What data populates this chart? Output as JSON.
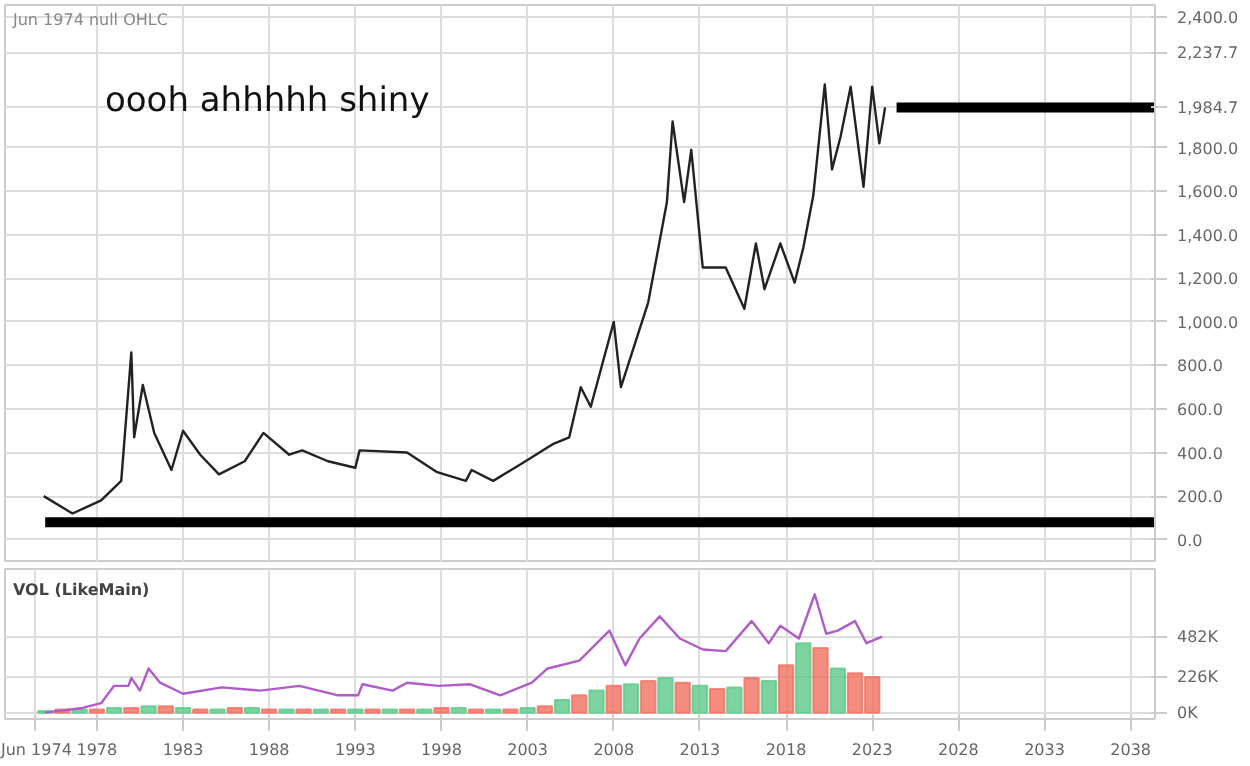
{
  "chart_data": [
    {
      "type": "line",
      "annotations": [
        "Jun 1974 null OHLC",
        "oooh ahhhhh shiny"
      ],
      "xlim": [
        "1972-09",
        "2039-06"
      ],
      "ylim": [
        -98,
        2455
      ],
      "xticks": [
        "1978",
        "1983",
        "1988",
        "1993",
        "1998",
        "2003",
        "2008",
        "2013",
        "2018",
        "2023",
        "2028",
        "2033",
        "2038"
      ],
      "yticks": [
        {
          "value": 0,
          "label": "0.0"
        },
        {
          "value": 200,
          "label": "200.0"
        },
        {
          "value": 400,
          "label": "400.0"
        },
        {
          "value": 600,
          "label": "600.0"
        },
        {
          "value": 800,
          "label": "800.0"
        },
        {
          "value": 1000,
          "label": "1,000.0"
        },
        {
          "value": 1200,
          "label": "1,200.0"
        },
        {
          "value": 1400,
          "label": "1,400.0"
        },
        {
          "value": 1600,
          "label": "1,600.0"
        },
        {
          "value": 1800,
          "label": "1,800.0"
        },
        {
          "value": 1984.7,
          "label": "1,984.7"
        },
        {
          "value": 2237.7,
          "label": "2,237.7"
        },
        {
          "value": 2400,
          "label": "2,400.0"
        }
      ],
      "grid": true,
      "tick_labels": "y",
      "series": [
        {
          "color": "#222222",
          "x": [
            "1974-12",
            "1976-08",
            "1978-04",
            "1979-06",
            "1980-01",
            "1980-03",
            "1980-09",
            "1981-05",
            "1982-05",
            "1983-01",
            "1984-01",
            "1985-02",
            "1986-08",
            "1987-09",
            "1989-03",
            "1989-12",
            "1991-06",
            "1993-01",
            "1993-04",
            "1996-01",
            "1997-10",
            "1999-06",
            "1999-10",
            "2001-01",
            "2002-09",
            "2004-07",
            "2005-06",
            "2006-02",
            "2006-09",
            "2008-01",
            "2008-06",
            "2010-01",
            "2011-02",
            "2011-06",
            "2012-02",
            "2012-07",
            "2013-03",
            "2014-07",
            "2015-08",
            "2016-04",
            "2016-10",
            "2017-09",
            "2018-07",
            "2019-01",
            "2019-08",
            "2020-04",
            "2020-09",
            "2021-03",
            "2021-10",
            "2022-07",
            "2023-01",
            "2023-06",
            "2023-10"
          ],
          "values": [
            200,
            120,
            180,
            270,
            860,
            470,
            710,
            490,
            320,
            500,
            390,
            300,
            360,
            490,
            390,
            410,
            360,
            330,
            410,
            400,
            310,
            270,
            320,
            270,
            350,
            440,
            470,
            700,
            610,
            1000,
            700,
            1090,
            1550,
            1920,
            1550,
            1790,
            1250,
            1250,
            1060,
            1360,
            1150,
            1360,
            1180,
            1340,
            1580,
            2090,
            1700,
            1850,
            2080,
            1620,
            2080,
            1820,
            1984.7
          ]
        },
        {
          "color": "#000000",
          "x": [
            "2024-06",
            "2039-06"
          ],
          "values": [
            1984.7,
            1984.7
          ]
        },
        {
          "color": "#000000",
          "x": [
            "1975-01",
            "2039-06"
          ],
          "values": [
            80,
            80
          ]
        }
      ]
    },
    {
      "type": "bar",
      "title": "VOL (LikeMain)",
      "xlim": [
        "1972-09",
        "2039-06"
      ],
      "ylim": [
        -40,
        910
      ],
      "xticks": [
        {
          "value": "1974-06",
          "label": "Jun 1974"
        },
        "1978",
        "1983",
        "1988",
        "1993",
        "1998",
        "2003",
        "2008",
        "2013",
        "2018",
        "2023",
        "2028",
        "2033",
        "2038"
      ],
      "yticks": [
        {
          "value": 0,
          "label": "0K"
        },
        {
          "value": 226,
          "label": "226K"
        },
        {
          "value": 482,
          "label": "482K"
        }
      ],
      "grid": true,
      "series": [
        {
          "type": "bar",
          "x": [
            "1975",
            "1976",
            "1977",
            "1978",
            "1979",
            "1980",
            "1981",
            "1982",
            "1983",
            "1984",
            "1985",
            "1986",
            "1987",
            "1988",
            "1989",
            "1990",
            "1991",
            "1992",
            "1993",
            "1994",
            "1995",
            "1996",
            "1997",
            "1998",
            "1999",
            "2000",
            "2001",
            "2002",
            "2003",
            "2004",
            "2005",
            "2006",
            "2007",
            "2008",
            "2009",
            "2010",
            "2011",
            "2012",
            "2013",
            "2014",
            "2015",
            "2016",
            "2017",
            "2018",
            "2019",
            "2020",
            "2021",
            "2022",
            "2023"
          ],
          "values": [
            10,
            20,
            20,
            20,
            30,
            30,
            40,
            40,
            30,
            20,
            20,
            30,
            30,
            20,
            20,
            20,
            20,
            20,
            20,
            20,
            20,
            20,
            20,
            30,
            30,
            20,
            20,
            20,
            30,
            40,
            80,
            110,
            140,
            170,
            180,
            200,
            220,
            190,
            170,
            150,
            160,
            220,
            200,
            300,
            440,
            410,
            280,
            250,
            226
          ],
          "colors": [
            "#5cc98a",
            "#f07060",
            "#5cc98a",
            "#f07060",
            "#5cc98a",
            "#f07060",
            "#5cc98a",
            "#f07060",
            "#5cc98a",
            "#f07060",
            "#5cc98a",
            "#f07060",
            "#5cc98a",
            "#f07060",
            "#5cc98a",
            "#f07060",
            "#5cc98a",
            "#f07060",
            "#5cc98a",
            "#f07060",
            "#5cc98a",
            "#f07060",
            "#5cc98a",
            "#f07060",
            "#5cc98a",
            "#f07060",
            "#5cc98a",
            "#f07060",
            "#5cc98a",
            "#f07060",
            "#5cc98a",
            "#f07060",
            "#5cc98a",
            "#f07060",
            "#5cc98a",
            "#f07060",
            "#5cc98a",
            "#f07060",
            "#5cc98a",
            "#f07060",
            "#5cc98a",
            "#f07060",
            "#5cc98a",
            "#f07060",
            "#5cc98a",
            "#f07060",
            "#5cc98a",
            "#f07060",
            "#f07060"
          ]
        },
        {
          "type": "line",
          "color": "#b05cc8",
          "x": [
            "1975-01",
            "1977-03",
            "1978-04",
            "1979-01",
            "1979-11",
            "1980-01",
            "1980-07",
            "1981-01",
            "1981-09",
            "1983-01",
            "1985-04",
            "1987-07",
            "1989-10",
            "1992-01",
            "1993-03",
            "1993-06",
            "1995-03",
            "1996-01",
            "1997-11",
            "1999-09",
            "2001-06",
            "2003-04",
            "2004-03",
            "2006-01",
            "2007-10",
            "2008-09",
            "2009-07",
            "2010-09",
            "2011-11",
            "2013-03",
            "2014-07",
            "2016-01",
            "2017-01",
            "2017-09",
            "2018-10",
            "2019-09",
            "2020-05",
            "2021-01",
            "2022-01",
            "2022-09",
            "2023-08"
          ],
          "values": [
            0,
            30,
            60,
            170,
            170,
            220,
            140,
            280,
            190,
            120,
            160,
            140,
            170,
            110,
            110,
            180,
            140,
            190,
            170,
            180,
            110,
            190,
            280,
            330,
            520,
            300,
            470,
            610,
            470,
            400,
            390,
            580,
            440,
            550,
            470,
            750,
            500,
            520,
            580,
            440,
            482
          ]
        }
      ]
    }
  ]
}
